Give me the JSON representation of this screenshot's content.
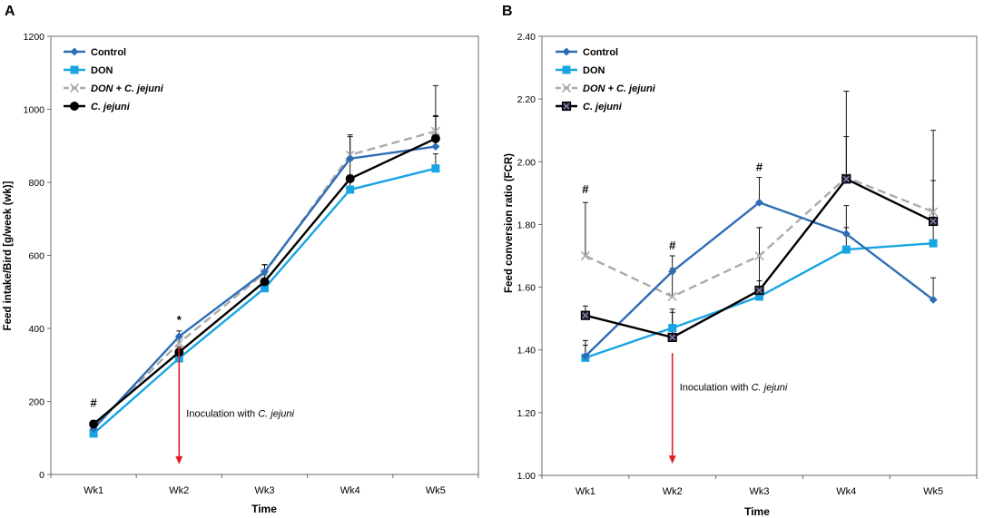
{
  "chart_data": [
    {
      "panel_label": "A",
      "type": "line",
      "xlabel": "Time",
      "ylabel": "Feed intake/Bird [g/week (wk)]",
      "categories": [
        "Wk1",
        "Wk2",
        "Wk3",
        "Wk4",
        "Wk5"
      ],
      "ylim": [
        0,
        1200
      ],
      "yticks": [
        0,
        200,
        400,
        600,
        800,
        1000,
        1200
      ],
      "ytick_labels": [
        "0",
        "200",
        "400",
        "600",
        "800",
        "1000",
        "1200"
      ],
      "grid": false,
      "legend": "top-left",
      "series": [
        {
          "name": "Control",
          "values": [
            125,
            378,
            555,
            865,
            898
          ],
          "color": "#2e6db4",
          "dash": "solid",
          "marker": "diamond",
          "err_up": [
            10,
            15,
            20,
            60,
            85
          ]
        },
        {
          "name": "DON",
          "values": [
            112,
            318,
            510,
            780,
            838
          ],
          "color": "#19a4e3",
          "dash": "solid",
          "marker": "square",
          "err_up": [
            8,
            12,
            15,
            40,
            40
          ]
        },
        {
          "name": "DON + C. jejuni",
          "values": [
            130,
            360,
            552,
            875,
            940
          ],
          "color": "#ababab",
          "dash": "dashed",
          "marker": "x",
          "err_up": [
            12,
            20,
            22,
            55,
            125
          ]
        },
        {
          "name": "C. jejuni",
          "values": [
            138,
            335,
            528,
            810,
            920
          ],
          "color": "#000000",
          "dash": "solid",
          "marker": "circle",
          "err_up": [
            10,
            15,
            18,
            50,
            60
          ]
        }
      ],
      "annotations": [
        {
          "text": "#",
          "category": "Wk1",
          "y": 185
        },
        {
          "text": "*",
          "category": "Wk2",
          "y": 412
        }
      ],
      "arrow": {
        "category": "Wk2",
        "y_from": 350,
        "y_to": 30,
        "label": "Inoculation  with ",
        "label_italic": "C. jejuni",
        "label_y": 158
      }
    },
    {
      "panel_label": "B",
      "type": "line",
      "xlabel": "Time",
      "ylabel": "Feed conversion ratio (FCR)",
      "categories": [
        "Wk1",
        "Wk2",
        "Wk3",
        "Wk4",
        "Wk5"
      ],
      "ylim": [
        1.0,
        2.4
      ],
      "yticks": [
        1.0,
        1.2,
        1.4,
        1.6,
        1.8,
        2.0,
        2.2,
        2.4
      ],
      "ytick_labels": [
        "1.00",
        "1.20",
        "1.40",
        "1.60",
        "1.80",
        "2.00",
        "2.20",
        "2.40"
      ],
      "grid": false,
      "legend": "top-left",
      "series": [
        {
          "name": "Control",
          "values": [
            1.38,
            1.65,
            1.87,
            1.77,
            1.56
          ],
          "color": "#2e6db4",
          "dash": "solid",
          "marker": "diamond",
          "err_up": [
            0.05,
            0.05,
            0.08,
            0.09,
            0.07
          ]
        },
        {
          "name": "DON",
          "values": [
            1.375,
            1.47,
            1.57,
            1.72,
            1.74
          ],
          "color": "#19a4e3",
          "dash": "solid",
          "marker": "square",
          "err_up": [
            0.04,
            0.06,
            0.05,
            0.07,
            0.08
          ]
        },
        {
          "name": "DON + C. jejuni",
          "values": [
            1.7,
            1.57,
            1.7,
            1.95,
            1.84
          ],
          "color": "#ababab",
          "dash": "dashed",
          "marker": "x",
          "err_up": [
            0.17,
            0.09,
            0.09,
            0.13,
            0.1
          ]
        },
        {
          "name": "C. jejuni",
          "values": [
            1.51,
            1.44,
            1.59,
            1.945,
            1.81
          ],
          "color": "#000000",
          "dash": "solid",
          "marker": "square-x",
          "err_up": [
            0.03,
            0.08,
            0.2,
            0.28,
            0.29
          ]
        }
      ],
      "annotations": [
        {
          "text": "#",
          "category": "Wk1",
          "y": 1.9
        },
        {
          "text": "#",
          "category": "Wk2",
          "y": 1.72
        },
        {
          "text": "#",
          "category": "Wk3",
          "y": 1.97
        }
      ],
      "arrow": {
        "category": "Wk2",
        "y_from": 1.39,
        "y_to": 1.04,
        "label": "Inoculation  with ",
        "label_italic": "C. jejuni",
        "label_y": 1.27
      }
    }
  ]
}
